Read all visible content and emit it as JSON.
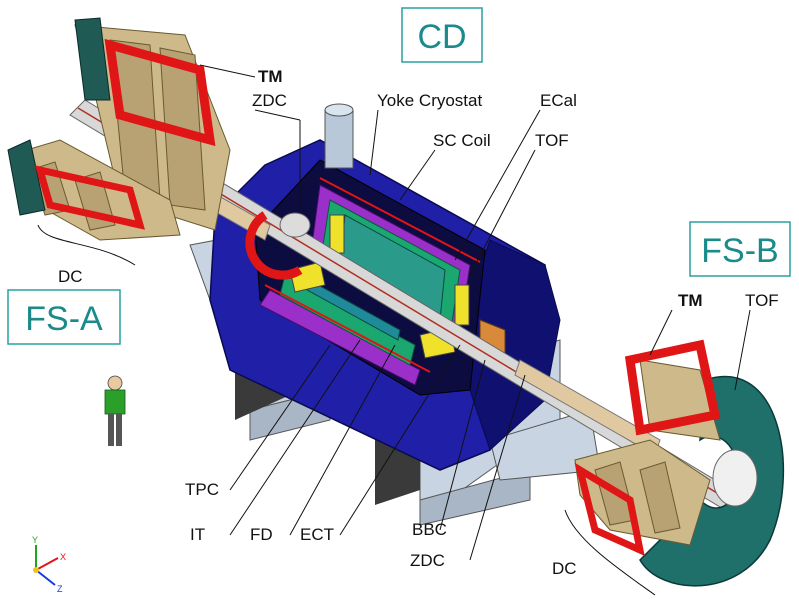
{
  "regions": {
    "cd": "CD",
    "fs_a": "FS-A",
    "fs_b": "FS-B"
  },
  "labels": {
    "tm_top": "TM",
    "zdc_top": "ZDC",
    "yoke_cryostat": "Yoke Cryostat",
    "ecal": "ECal",
    "sc_coil": "SC Coil",
    "tof_top": "TOF",
    "dc_left": "DC",
    "tm_right": "TM",
    "tof_right": "TOF",
    "tpc": "TPC",
    "it": "IT",
    "fd": "FD",
    "ect": "ECT",
    "bbc": "BBC",
    "zdc_bottom": "ZDC",
    "dc_right": "DC"
  },
  "axes": {
    "y": "Y",
    "x": "X",
    "z": "Z"
  },
  "colors": {
    "title_text": "#1a8a8a",
    "title_border": "#2aa0a0",
    "yoke_blue": "#1f1fa8",
    "yoke_dark": "#101070",
    "cryostat_purple": "#9b2fc9",
    "tpc_green": "#1aa870",
    "ecal_yellow": "#f0e22a",
    "coil_red": "#e01515",
    "dc_tan": "#cdb98a",
    "support_grey": "#c8d4e2",
    "support_dark": "#3a3a3a",
    "tof_teal": "#1f6f6a",
    "beam_pipe": "#d8d8d8"
  }
}
